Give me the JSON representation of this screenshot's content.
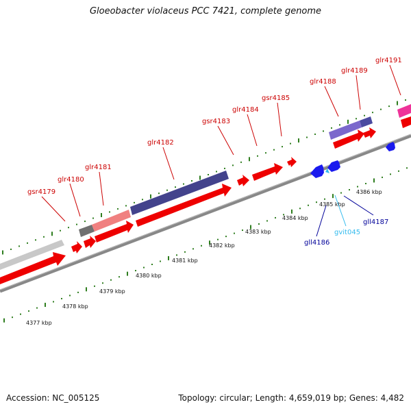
{
  "title": "Gloeobacter violaceus PCC 7421, complete genome",
  "footer": {
    "accession": "Accession: NC_005125",
    "summary": "Topology: circular; Length: 4,659,019 bp; Genes: 4,482"
  },
  "colors": {
    "backbone": "#888888",
    "tick": "#2e7d1e",
    "gene_red": "#ee0000",
    "label_red": "#cc0000",
    "label_blue": "#000099",
    "label_cyan": "#33bbee",
    "cds_blue": "#1a1aee"
  },
  "scale_labels": [
    "4377 kbp",
    "4378 kbp",
    "4379 kbp",
    "4380 kbp",
    "4381 kbp",
    "4382 kbp",
    "4383 kbp",
    "4384 kbp",
    "4385 kbp",
    "4386 kbp"
  ],
  "genes_forward": [
    {
      "id": "gsr4179",
      "label": "gsr4179"
    },
    {
      "id": "glr4180",
      "label": "glr4180"
    },
    {
      "id": "glr4181",
      "label": "glr4181"
    },
    {
      "id": "glr4182",
      "label": "glr4182"
    },
    {
      "id": "gsr4183",
      "label": "gsr4183"
    },
    {
      "id": "glr4184",
      "label": "glr4184"
    },
    {
      "id": "gsr4185",
      "label": "gsr4185"
    },
    {
      "id": "glr4188",
      "label": "glr4188"
    },
    {
      "id": "glr4189",
      "label": "glr4189"
    },
    {
      "id": "glr4191",
      "label": "glr4191"
    }
  ],
  "genes_reverse": [
    {
      "id": "gll4186",
      "label": "gll4186"
    },
    {
      "id": "gvit045",
      "label": "gvit045"
    },
    {
      "id": "gll4187",
      "label": "gll4187"
    }
  ]
}
